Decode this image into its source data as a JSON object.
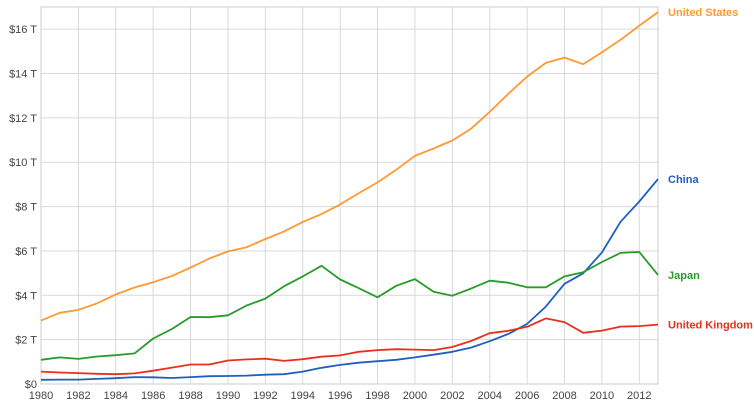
{
  "chart_data": {
    "type": "line",
    "x": [
      1980,
      1981,
      1982,
      1983,
      1984,
      1985,
      1986,
      1987,
      1988,
      1989,
      1990,
      1991,
      1992,
      1993,
      1994,
      1995,
      1996,
      1997,
      1998,
      1999,
      2000,
      2001,
      2002,
      2003,
      2004,
      2005,
      2006,
      2007,
      2008,
      2009,
      2010,
      2011,
      2012,
      2013
    ],
    "xlim": [
      1980,
      2013
    ],
    "ylim": [
      0,
      17
    ],
    "x_ticks": [
      1980,
      1982,
      1984,
      1986,
      1988,
      1990,
      1992,
      1994,
      1996,
      1998,
      2000,
      2002,
      2004,
      2006,
      2008,
      2010,
      2012
    ],
    "x_tick_labels": [
      "1980",
      "1982",
      "1984",
      "1986",
      "1988",
      "1990",
      "1992",
      "1994",
      "1996",
      "1998",
      "2000",
      "2002",
      "2004",
      "2006",
      "2008",
      "2010",
      "2012"
    ],
    "y_ticks": [
      0,
      2,
      4,
      6,
      8,
      10,
      12,
      14,
      16
    ],
    "y_tick_labels": [
      "$0",
      "$2 T",
      "$4 T",
      "$6 T",
      "$8 T",
      "$10 T",
      "$12 T",
      "$14 T",
      "$16 T"
    ],
    "grid": true,
    "legend": "inline labels at right end of each line",
    "series": [
      {
        "name": "United States",
        "color": "#ff9933",
        "values": [
          2.86,
          3.21,
          3.34,
          3.64,
          4.04,
          4.35,
          4.59,
          4.87,
          5.25,
          5.66,
          5.98,
          6.17,
          6.54,
          6.88,
          7.31,
          7.66,
          8.1,
          8.61,
          9.09,
          9.66,
          10.29,
          10.62,
          10.98,
          11.51,
          12.27,
          13.09,
          13.86,
          14.48,
          14.72,
          14.42,
          14.96,
          15.52,
          16.16,
          16.77
        ]
      },
      {
        "name": "China",
        "color": "#1f5fbf",
        "values": [
          0.19,
          0.2,
          0.2,
          0.23,
          0.26,
          0.31,
          0.3,
          0.27,
          0.31,
          0.35,
          0.36,
          0.38,
          0.42,
          0.44,
          0.56,
          0.73,
          0.86,
          0.96,
          1.03,
          1.09,
          1.2,
          1.32,
          1.45,
          1.64,
          1.93,
          2.26,
          2.71,
          3.49,
          4.52,
          4.99,
          5.93,
          7.32,
          8.23,
          9.24
        ]
      },
      {
        "name": "Japan",
        "color": "#2a9a2a",
        "values": [
          1.09,
          1.2,
          1.13,
          1.24,
          1.3,
          1.38,
          2.05,
          2.48,
          3.02,
          3.01,
          3.1,
          3.54,
          3.85,
          4.41,
          4.85,
          5.33,
          4.71,
          4.32,
          3.91,
          4.43,
          4.73,
          4.16,
          3.98,
          4.3,
          4.66,
          4.57,
          4.36,
          4.36,
          4.85,
          5.04,
          5.5,
          5.91,
          5.95,
          4.92
        ]
      },
      {
        "name": "United Kingdom",
        "color": "#e8301c",
        "values": [
          0.56,
          0.52,
          0.49,
          0.46,
          0.44,
          0.48,
          0.6,
          0.74,
          0.88,
          0.88,
          1.06,
          1.11,
          1.14,
          1.04,
          1.12,
          1.23,
          1.29,
          1.45,
          1.53,
          1.57,
          1.55,
          1.53,
          1.67,
          1.94,
          2.29,
          2.4,
          2.58,
          2.96,
          2.79,
          2.31,
          2.41,
          2.59,
          2.61,
          2.68
        ]
      }
    ]
  }
}
